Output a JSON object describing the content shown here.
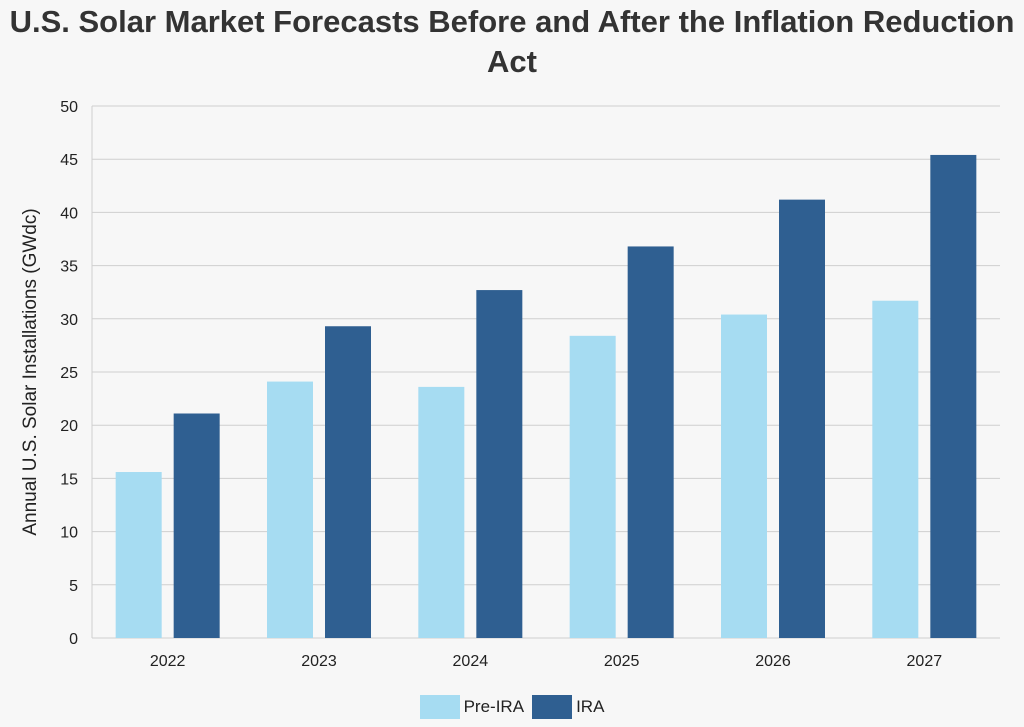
{
  "chart_data": {
    "type": "bar",
    "title_line1": "U.S. Solar Market Forecasts Before and After the Inflation Reduction",
    "title_line2": "Act",
    "xlabel": "",
    "ylabel": "Annual U.S. Solar Installations (GWdc)",
    "categories": [
      "2022",
      "2023",
      "2024",
      "2025",
      "2026",
      "2027"
    ],
    "ylim": [
      0,
      50
    ],
    "yticks": [
      "0",
      "5",
      "10",
      "15",
      "20",
      "25",
      "30",
      "35",
      "40",
      "45",
      "50"
    ],
    "grid": true,
    "legend_position": "bottom",
    "series": [
      {
        "name": "Pre-IRA",
        "color": "#a6dcf2",
        "values": [
          15.6,
          24.1,
          23.6,
          28.4,
          30.4,
          31.7
        ]
      },
      {
        "name": "IRA",
        "color": "#2f5f91",
        "values": [
          21.1,
          29.3,
          32.7,
          36.8,
          41.2,
          45.4
        ]
      }
    ]
  }
}
